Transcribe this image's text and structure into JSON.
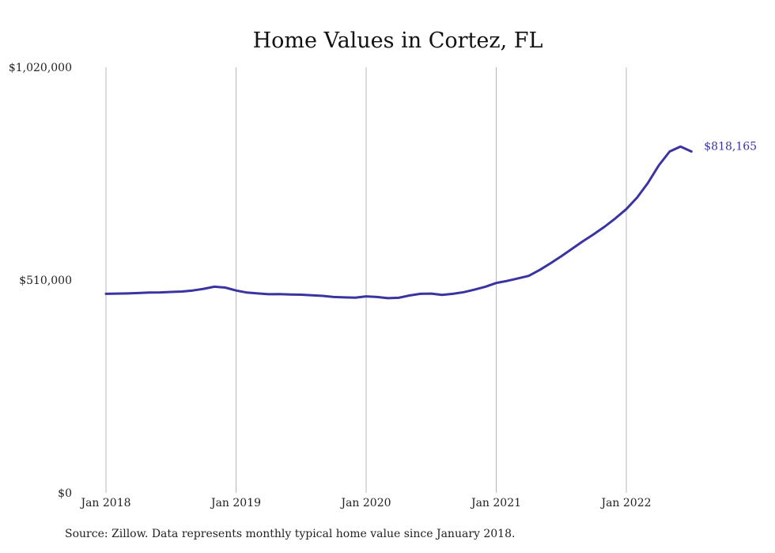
{
  "chart_data": {
    "type": "line",
    "title": "Home Values in Cortez, FL",
    "xlabel": "",
    "ylabel": "",
    "x_ticks": [
      "Jan 2018",
      "Jan 2019",
      "Jan 2020",
      "Jan 2021",
      "Jan 2022"
    ],
    "y_ticks": [
      "$0",
      "$510,000",
      "$1,020,000"
    ],
    "y_tick_values": [
      0,
      510000,
      1020000
    ],
    "ylim": [
      0,
      1020000
    ],
    "xlim": [
      "2018-01",
      "2022-07"
    ],
    "grid": "vertical",
    "line_color": "#3a34a0",
    "end_label": "$818,165",
    "series": [
      {
        "x": [
          "2018-01",
          "2018-02",
          "2018-03",
          "2018-04",
          "2018-05",
          "2018-06",
          "2018-07",
          "2018-08",
          "2018-09",
          "2018-10",
          "2018-11",
          "2018-12",
          "2019-01",
          "2019-02",
          "2019-03",
          "2019-04",
          "2019-05",
          "2019-06",
          "2019-07",
          "2019-08",
          "2019-09",
          "2019-10",
          "2019-11",
          "2019-12",
          "2020-01",
          "2020-02",
          "2020-03",
          "2020-04",
          "2020-05",
          "2020-06",
          "2020-07",
          "2020-08",
          "2020-09",
          "2020-10",
          "2020-11",
          "2020-12",
          "2021-01",
          "2021-02",
          "2021-03",
          "2021-04",
          "2021-05",
          "2021-06",
          "2021-07",
          "2021-08",
          "2021-09",
          "2021-10",
          "2021-11",
          "2021-12",
          "2022-01",
          "2022-02",
          "2022-03",
          "2022-04",
          "2022-05",
          "2022-06",
          "2022-07"
        ],
        "values": [
          477000,
          477500,
          478000,
          479000,
          480000,
          480500,
          481500,
          482500,
          485000,
          489000,
          494000,
          492000,
          485000,
          480000,
          478000,
          476000,
          476500,
          475500,
          475000,
          473500,
          472000,
          469500,
          468500,
          468000,
          471000,
          469500,
          466500,
          467500,
          473000,
          477000,
          477500,
          474500,
          477000,
          481000,
          487000,
          494000,
          503000,
          508000,
          514000,
          520000,
          534000,
          550000,
          567000,
          585000,
          603000,
          620000,
          638000,
          658000,
          680000,
          708000,
          743000,
          785000,
          818000,
          830000,
          818165
        ]
      }
    ]
  },
  "source": "Source: Zillow. Data represents monthly typical home value since January 2018."
}
